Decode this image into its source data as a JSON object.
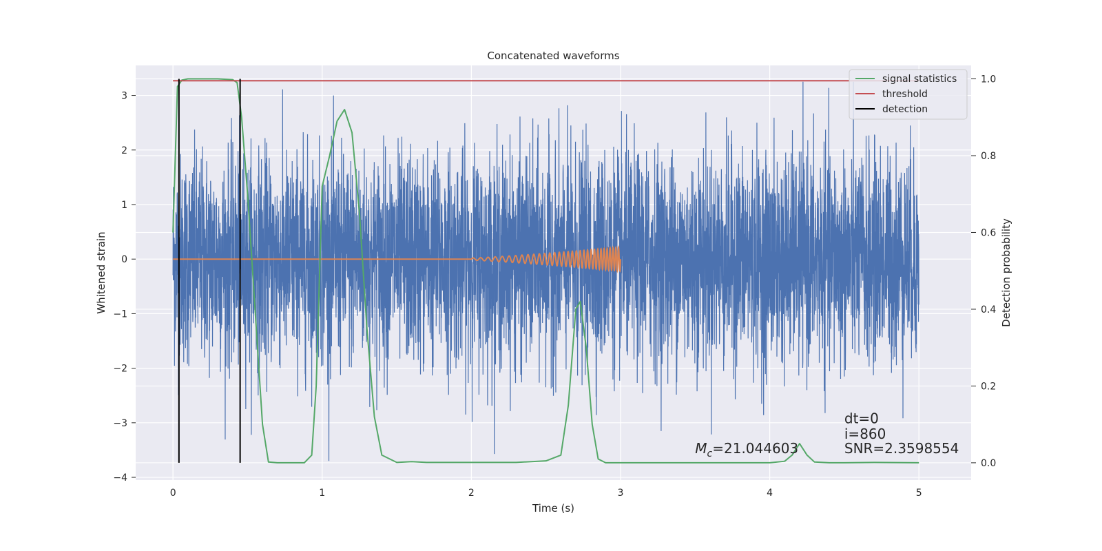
{
  "chart_data": {
    "type": "line",
    "title": "Concatenated waveforms",
    "xlabel": "Time (s)",
    "ylabel": "Whitened strain",
    "y2label": "Detection probability",
    "xlim": [
      -0.25,
      5.35
    ],
    "ylim": [
      -4.05,
      3.55
    ],
    "y2lim": [
      -0.045,
      1.035
    ],
    "x_ticks": [
      0,
      1,
      2,
      3,
      4,
      5
    ],
    "y_ticks": [
      -4,
      -3,
      -2,
      -1,
      0,
      1,
      2,
      3
    ],
    "y2_ticks": [
      0.0,
      0.2,
      0.4,
      0.6,
      0.8,
      1.0
    ],
    "x_tick_labels": [
      "0",
      "1",
      "2",
      "3",
      "4",
      "5"
    ],
    "y_tick_labels": [
      "−4",
      "−3",
      "−2",
      "−1",
      "0",
      "1",
      "2",
      "3"
    ],
    "y2_tick_labels": [
      "0.0",
      "0.2",
      "0.4",
      "0.6",
      "0.8",
      "1.0"
    ],
    "grid": true,
    "legend_position": "top-right",
    "colors": {
      "strain": "#4c72b0",
      "template": "#dd8452",
      "signal_statistics": "#55a868",
      "threshold": "#c44e52",
      "detection": "#000000",
      "background": "#eaeaf2",
      "grid": "#ffffff"
    },
    "series": [
      {
        "name": "signal statistics",
        "axis": "right",
        "x": [
          0,
          0.03,
          0.06,
          0.1,
          0.2,
          0.3,
          0.4,
          0.43,
          0.46,
          0.5,
          0.55,
          0.6,
          0.64,
          0.7,
          0.8,
          0.88,
          0.93,
          0.96,
          1.0,
          1.05,
          1.1,
          1.15,
          1.2,
          1.25,
          1.3,
          1.35,
          1.4,
          1.5,
          1.6,
          1.7,
          2.0,
          2.3,
          2.5,
          2.6,
          2.65,
          2.7,
          2.73,
          2.77,
          2.81,
          2.85,
          2.9,
          3.0,
          3.5,
          4.0,
          4.1,
          4.15,
          4.2,
          4.25,
          4.3,
          4.4,
          4.5,
          4.7,
          5.0
        ],
        "y": [
          0.6,
          0.98,
          0.997,
          1.0,
          1.0,
          1.0,
          0.998,
          0.99,
          0.9,
          0.7,
          0.4,
          0.1,
          0.002,
          0.0,
          0.0,
          0.0,
          0.02,
          0.2,
          0.72,
          0.8,
          0.89,
          0.92,
          0.86,
          0.65,
          0.35,
          0.12,
          0.02,
          0.001,
          0.003,
          0.001,
          0.001,
          0.001,
          0.005,
          0.02,
          0.15,
          0.4,
          0.42,
          0.3,
          0.1,
          0.01,
          0.0,
          0.0,
          0.0,
          0.0,
          0.004,
          0.02,
          0.05,
          0.02,
          0.002,
          0.0,
          0.0,
          0.001,
          0.0
        ]
      },
      {
        "name": "threshold",
        "axis": "right",
        "x": [
          0,
          5
        ],
        "y": [
          0.995,
          0.995
        ]
      },
      {
        "name": "detection",
        "axis": "right",
        "x": [
          0.04,
          0.45
        ],
        "y_from": 0.0,
        "y_to": 1.0
      },
      {
        "name": "",
        "axis": "left",
        "kind": "whitened-strain-noise",
        "x_range": [
          0,
          5
        ],
        "y_typical": [
          -1.5,
          1.5
        ],
        "y_peaks": [
          -3.7,
          3.25
        ]
      },
      {
        "name": "",
        "axis": "left",
        "kind": "chirp-template",
        "x_range": [
          0,
          3
        ],
        "chirp_start": 2.0,
        "chirp_end": 3.0,
        "amplitude_end": 0.2
      }
    ],
    "annotations": {
      "mc_symbol": "M",
      "mc_sub": "c",
      "mc_value": "=21.044603",
      "dt": "dt=0",
      "i": "i=860",
      "snr": "SNR=2.3598554"
    },
    "legend": [
      "signal statistics",
      "threshold",
      "detection"
    ]
  }
}
